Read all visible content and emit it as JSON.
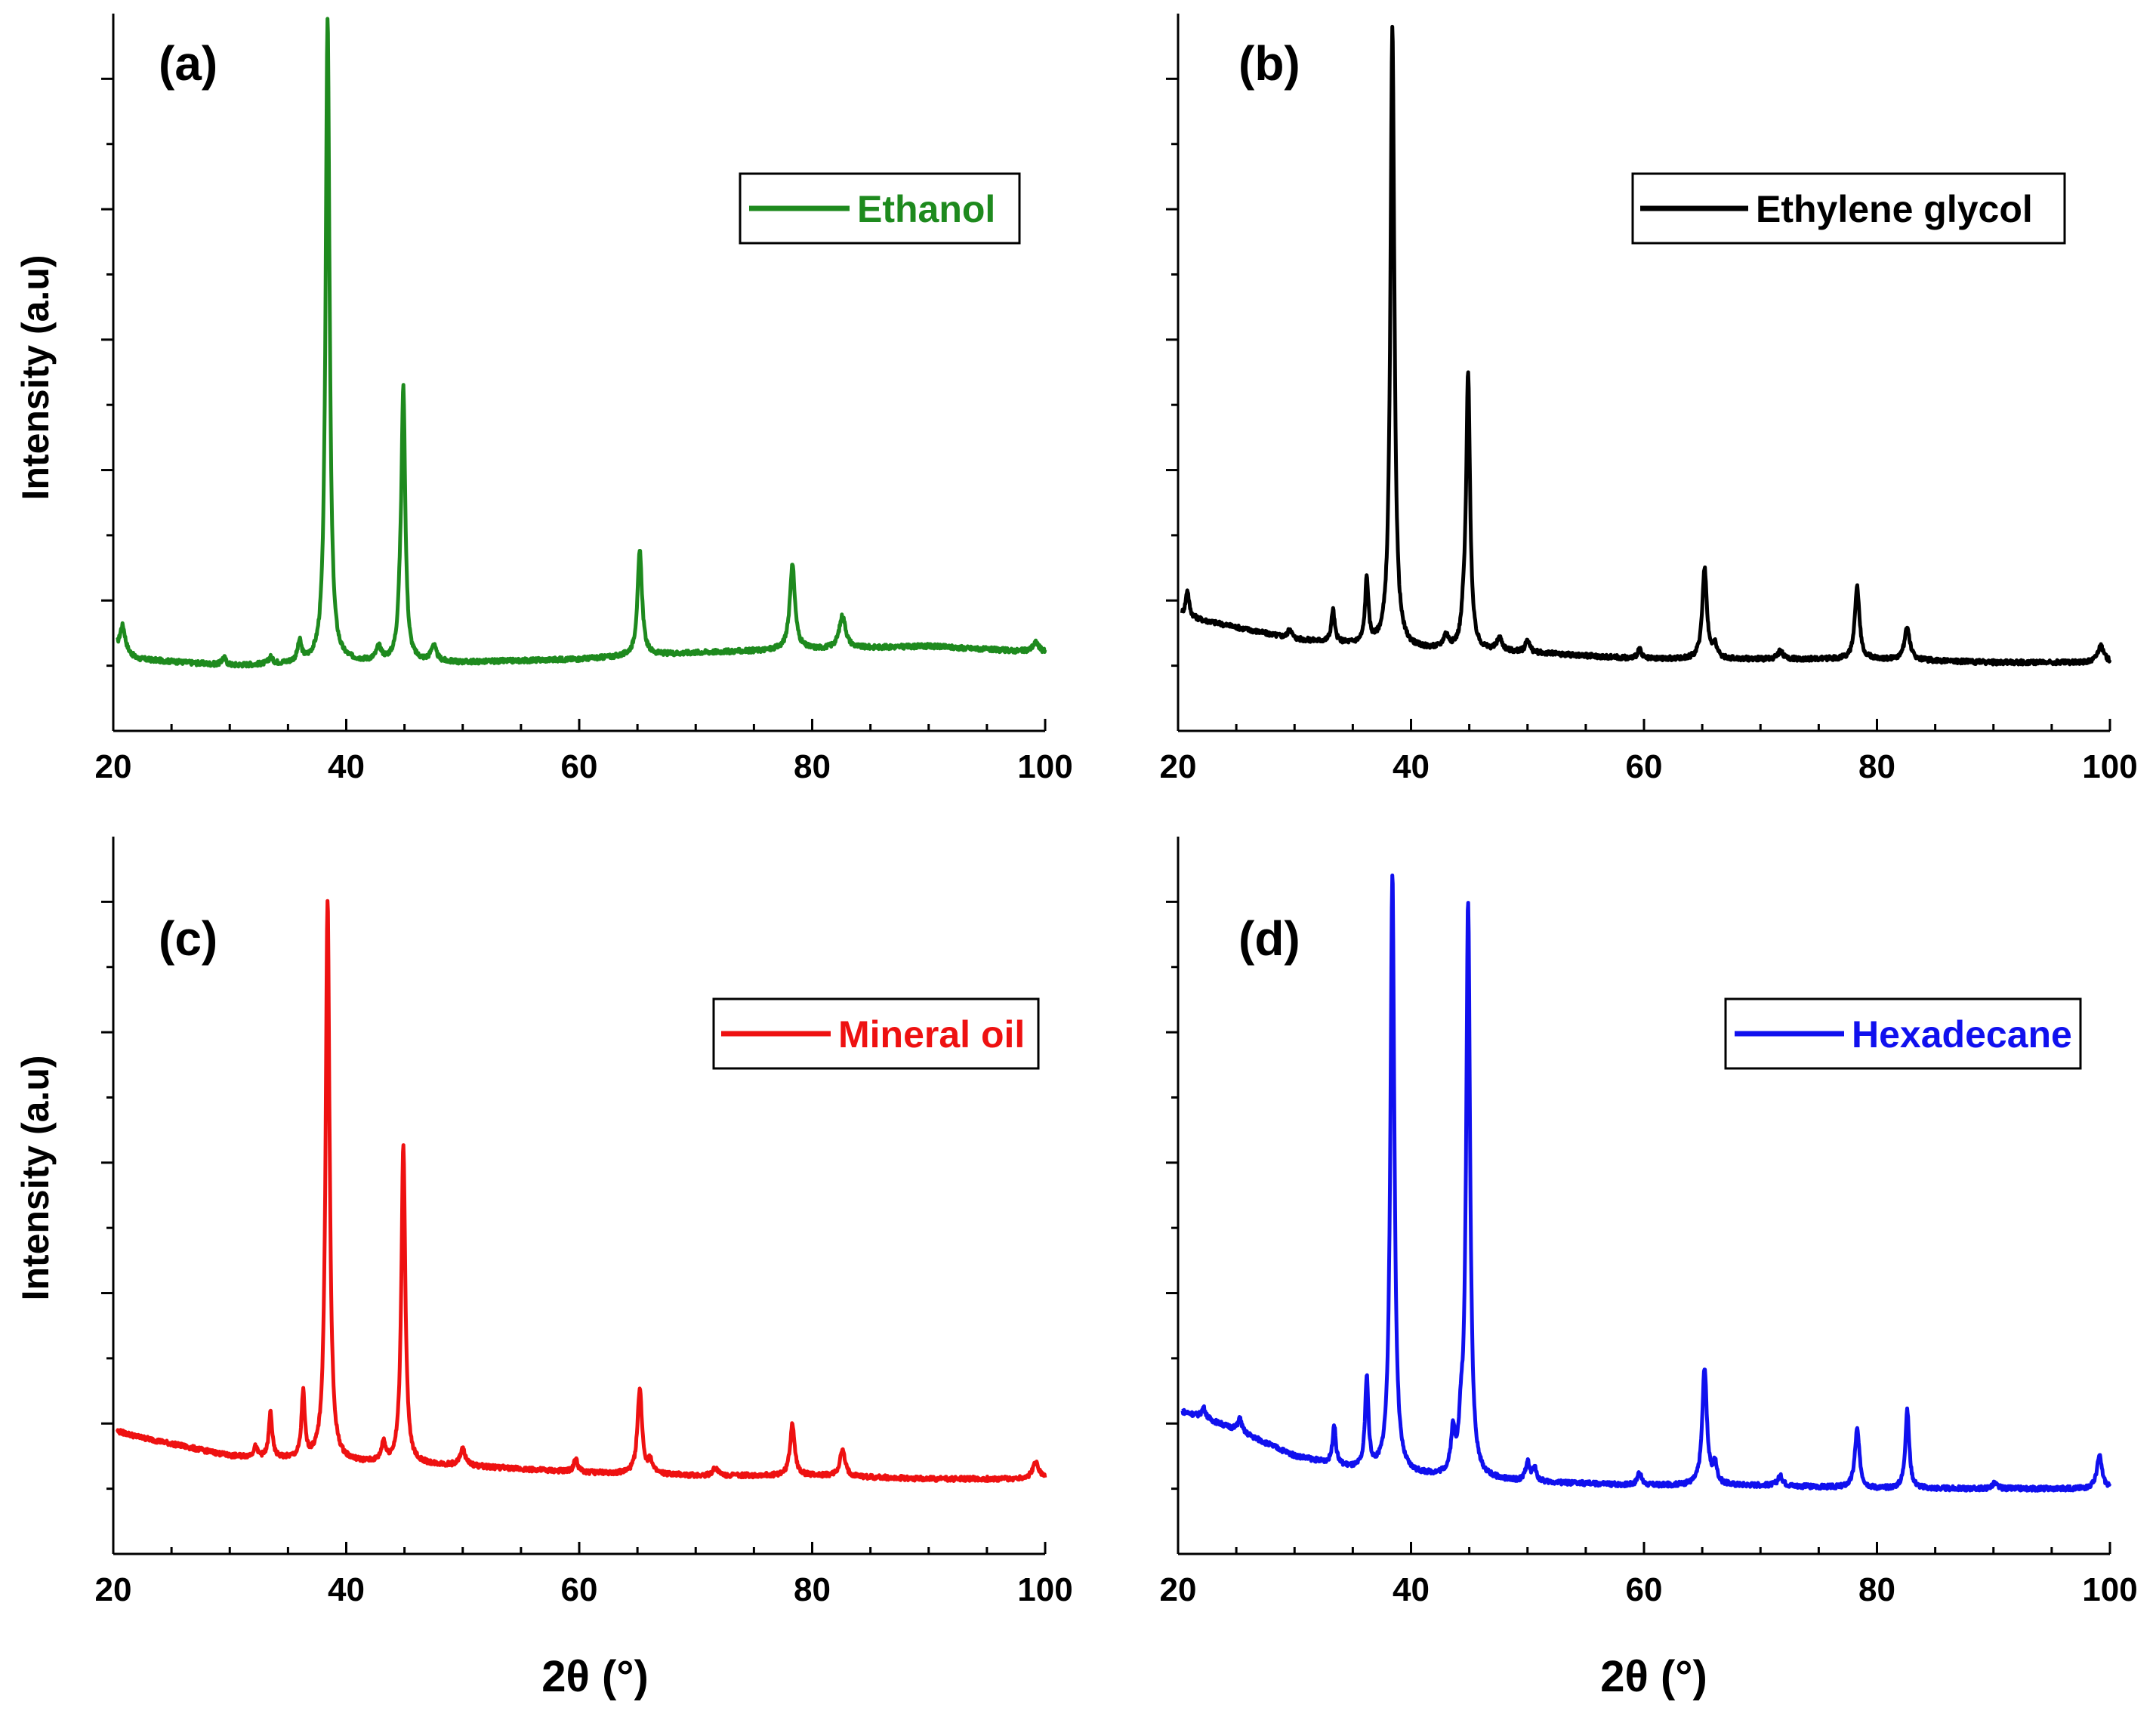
{
  "figure": {
    "x_axis_title": "2θ (°)",
    "y_axis_title": "Intensity (a.u)"
  },
  "chart_data": [
    {
      "type": "line",
      "panel_label": "(a)",
      "legend": "Ethanol",
      "color": "#1e8a1e",
      "xlim": [
        20,
        100
      ],
      "ylim": [
        0,
        110
      ],
      "xticks": [
        20,
        40,
        60,
        80,
        100
      ],
      "xtick_labels": [
        "20",
        "40",
        "60",
        "80",
        "100"
      ],
      "xlabel": "",
      "ylabel": "Intensity (a.u)",
      "baseline": {
        "x": [
          20,
          22,
          30,
          40,
          50,
          60,
          70,
          80,
          90,
          100
        ],
        "y": [
          13,
          11,
          10,
          10.5,
          10.5,
          11,
          12,
          12.5,
          13,
          12
        ]
      },
      "peaks": [
        {
          "x": 20.8,
          "h": 4,
          "w": 0.4
        },
        {
          "x": 29.5,
          "h": 1.2,
          "w": 0.3
        },
        {
          "x": 33.5,
          "h": 1,
          "w": 0.3
        },
        {
          "x": 36.0,
          "h": 3,
          "w": 0.3
        },
        {
          "x": 38.4,
          "h": 99,
          "w": 0.3
        },
        {
          "x": 42.8,
          "h": 2,
          "w": 0.4
        },
        {
          "x": 44.6,
          "h": 4,
          "w": 0.3
        },
        {
          "x": 44.9,
          "h": 41,
          "w": 0.3
        },
        {
          "x": 47.5,
          "h": 2.5,
          "w": 0.4
        },
        {
          "x": 65.2,
          "h": 16,
          "w": 0.35
        },
        {
          "x": 78.3,
          "h": 13,
          "w": 0.4
        },
        {
          "x": 82.6,
          "h": 5,
          "w": 0.5
        },
        {
          "x": 99.2,
          "h": 1.5,
          "w": 0.5
        }
      ]
    },
    {
      "type": "line",
      "panel_label": "(b)",
      "legend": "Ethylene glycol",
      "color": "#000000",
      "xlim": [
        20,
        100
      ],
      "ylim": [
        0,
        110
      ],
      "xticks": [
        20,
        40,
        60,
        80,
        100
      ],
      "xtick_labels": [
        "20",
        "40",
        "60",
        "80",
        "100"
      ],
      "xlabel": "",
      "ylabel": "",
      "baseline": {
        "x": [
          20,
          22,
          30,
          40,
          50,
          60,
          70,
          80,
          90,
          100
        ],
        "y": [
          18,
          17,
          14,
          12.5,
          12,
          11,
          11,
          11,
          10.5,
          10.5
        ]
      },
      "peaks": [
        {
          "x": 20.8,
          "h": 4,
          "w": 0.25
        },
        {
          "x": 29.6,
          "h": 1.5,
          "w": 0.3
        },
        {
          "x": 33.3,
          "h": 5,
          "w": 0.25
        },
        {
          "x": 36.2,
          "h": 10,
          "w": 0.25
        },
        {
          "x": 38.4,
          "h": 95,
          "w": 0.3
        },
        {
          "x": 43.0,
          "h": 2,
          "w": 0.4
        },
        {
          "x": 44.5,
          "h": 3,
          "w": 0.3
        },
        {
          "x": 44.9,
          "h": 42,
          "w": 0.3
        },
        {
          "x": 47.6,
          "h": 2,
          "w": 0.4
        },
        {
          "x": 50.0,
          "h": 2,
          "w": 0.3
        },
        {
          "x": 59.6,
          "h": 1.5,
          "w": 0.3
        },
        {
          "x": 65.2,
          "h": 14,
          "w": 0.35
        },
        {
          "x": 66.1,
          "h": 2,
          "w": 0.3
        },
        {
          "x": 71.7,
          "h": 1.2,
          "w": 0.4
        },
        {
          "x": 78.3,
          "h": 11,
          "w": 0.35
        },
        {
          "x": 82.6,
          "h": 5,
          "w": 0.4
        },
        {
          "x": 99.2,
          "h": 2.5,
          "w": 0.5
        }
      ]
    },
    {
      "type": "line",
      "panel_label": "(c)",
      "legend": "Mineral oil",
      "color": "#ee1111",
      "xlim": [
        20,
        100
      ],
      "ylim": [
        0,
        110
      ],
      "xticks": [
        20,
        40,
        60,
        80,
        100
      ],
      "xtick_labels": [
        "20",
        "40",
        "60",
        "80",
        "100"
      ],
      "xlabel": "",
      "ylabel": "Intensity (a.u)",
      "baseline": {
        "x": [
          20,
          22,
          30,
          40,
          50,
          60,
          70,
          80,
          90,
          100
        ],
        "y": [
          19,
          18,
          15,
          14,
          13.5,
          12.5,
          12,
          12,
          11.5,
          11.5
        ]
      },
      "peaks": [
        {
          "x": 32.2,
          "h": 1.5,
          "w": 0.3
        },
        {
          "x": 33.5,
          "h": 7,
          "w": 0.25
        },
        {
          "x": 36.3,
          "h": 10,
          "w": 0.25
        },
        {
          "x": 38.4,
          "h": 86,
          "w": 0.3
        },
        {
          "x": 43.2,
          "h": 3,
          "w": 0.3
        },
        {
          "x": 44.9,
          "h": 49,
          "w": 0.3
        },
        {
          "x": 50.0,
          "h": 2.5,
          "w": 0.4
        },
        {
          "x": 59.7,
          "h": 2,
          "w": 0.3
        },
        {
          "x": 65.2,
          "h": 13,
          "w": 0.35
        },
        {
          "x": 66.1,
          "h": 2,
          "w": 0.3
        },
        {
          "x": 71.7,
          "h": 1.2,
          "w": 0.4
        },
        {
          "x": 78.3,
          "h": 8,
          "w": 0.35
        },
        {
          "x": 82.6,
          "h": 4,
          "w": 0.4
        },
        {
          "x": 99.2,
          "h": 2.5,
          "w": 0.5
        }
      ]
    },
    {
      "type": "line",
      "panel_label": "(d)",
      "legend": "Hexadecane",
      "color": "#1010ee",
      "xlim": [
        20,
        100
      ],
      "ylim": [
        0,
        110
      ],
      "xticks": [
        20,
        40,
        60,
        80,
        100
      ],
      "xtick_labels": [
        "20",
        "40",
        "60",
        "80",
        "100"
      ],
      "xlabel": "",
      "ylabel": "",
      "baseline": {
        "x": [
          20,
          22,
          25,
          30,
          35,
          40,
          50,
          60,
          70,
          80,
          90,
          100
        ],
        "y": [
          22,
          21,
          19,
          15,
          13,
          12,
          11,
          10.5,
          10.5,
          10,
          10,
          10
        ]
      },
      "peaks": [
        {
          "x": 22.2,
          "h": 1.5,
          "w": 0.3
        },
        {
          "x": 25.3,
          "h": 2,
          "w": 0.3
        },
        {
          "x": 33.4,
          "h": 6,
          "w": 0.25
        },
        {
          "x": 36.2,
          "h": 14,
          "w": 0.25
        },
        {
          "x": 38.4,
          "h": 92,
          "w": 0.3
        },
        {
          "x": 43.6,
          "h": 6,
          "w": 0.3
        },
        {
          "x": 44.3,
          "h": 6,
          "w": 0.3
        },
        {
          "x": 44.9,
          "h": 88,
          "w": 0.3
        },
        {
          "x": 50.0,
          "h": 3,
          "w": 0.3
        },
        {
          "x": 50.6,
          "h": 2,
          "w": 0.3
        },
        {
          "x": 59.6,
          "h": 2,
          "w": 0.3
        },
        {
          "x": 65.2,
          "h": 18,
          "w": 0.35
        },
        {
          "x": 66.1,
          "h": 3,
          "w": 0.3
        },
        {
          "x": 71.7,
          "h": 1.5,
          "w": 0.4
        },
        {
          "x": 78.3,
          "h": 9,
          "w": 0.35
        },
        {
          "x": 82.6,
          "h": 12,
          "w": 0.3
        },
        {
          "x": 90.1,
          "h": 0.8,
          "w": 0.4
        },
        {
          "x": 99.1,
          "h": 5,
          "w": 0.4
        }
      ]
    }
  ]
}
